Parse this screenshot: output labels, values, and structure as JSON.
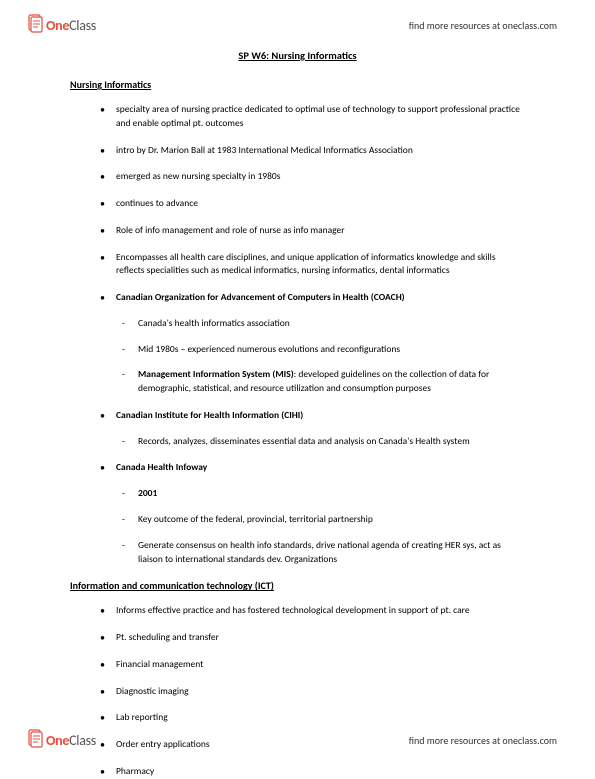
{
  "brand": {
    "one": "One",
    "class": "Class",
    "tagline": "find more resources at oneclass.com"
  },
  "title": "SP W6: Nursing Informatics",
  "sections": [
    {
      "heading": "Nursing Informatics",
      "items": [
        {
          "text": "specialty area of nursing practice dedicated to optimal use of technology to support professional practice and enable optimal pt. outcomes"
        },
        {
          "text": "intro by Dr. Marion Ball at 1983 International Medical Informatics Association"
        },
        {
          "text": "emerged as new nursing specialty in 1980s"
        },
        {
          "text": "continues to advance"
        },
        {
          "text": "Role of info management and role of nurse as info manager"
        },
        {
          "text": "Encompasses all health care disciplines, and unique application of informatics knowledge and skills reflects specialities such as medical informatics, nursing informatics, dental informatics"
        },
        {
          "bold": true,
          "text": "Canadian Organization for Advancement of Computers in Health (COACH)",
          "sub": [
            {
              "text": "Canada's health informatics association"
            },
            {
              "text": "Mid 1980s – experienced numerous evolutions and reconfigurations"
            },
            {
              "boldPrefix": "Management Information System (MIS)",
              "text": ": developed guidelines on the collection of data for demographic, statistical, and resource utilization and consumption purposes"
            }
          ]
        },
        {
          "bold": true,
          "text": "Canadian Institute for Health Information (CIHI)",
          "sub": [
            {
              "text": "Records, analyzes, disseminates essential data and analysis on Canada's Health system"
            }
          ]
        },
        {
          "bold": true,
          "text": "Canada Health Infoway",
          "sub": [
            {
              "bold": true,
              "text": "2001"
            },
            {
              "text": "Key outcome of the federal, provincial, territorial partnership"
            },
            {
              "text": "Generate consensus on health info standards, drive national agenda of creating HER sys, act as liaison to international standards dev. Organizations"
            }
          ]
        }
      ]
    },
    {
      "heading": "Information and communication technology (ICT)",
      "items": [
        {
          "text": "Informs effective practice and has fostered technological development in support of pt. care"
        },
        {
          "text": "Pt. scheduling and transfer"
        },
        {
          "text": "Financial management"
        },
        {
          "text": "Diagnostic imaging"
        },
        {
          "text": "Lab reporting"
        },
        {
          "text": "Order entry applications"
        },
        {
          "text": "Pharmacy"
        }
      ]
    }
  ]
}
